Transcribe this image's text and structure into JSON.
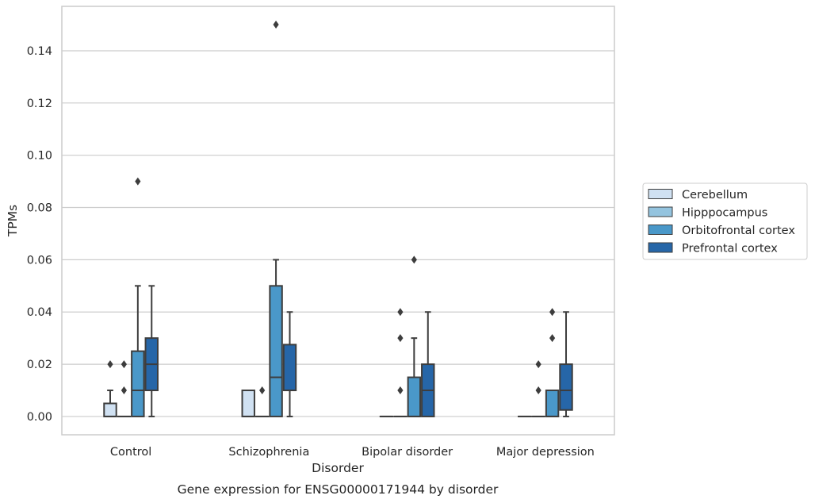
{
  "chart_data": {
    "type": "box",
    "title": "Gene expression for ENSG00000171944 by disorder",
    "xlabel": "Disorder",
    "ylabel": "TPMs",
    "ylim": [
      -0.007,
      0.157
    ],
    "yticks": [
      0.0,
      0.02,
      0.04,
      0.06,
      0.08,
      0.1,
      0.12,
      0.14
    ],
    "ytick_labels": [
      "0.00",
      "0.02",
      "0.04",
      "0.06",
      "0.08",
      "0.10",
      "0.12",
      "0.14"
    ],
    "grid": true,
    "legend_position": "outside-right",
    "categories": [
      "Control",
      "Schizophrenia",
      "Bipolar disorder",
      "Major depression"
    ],
    "series": [
      {
        "name": "Cerebellum",
        "color": "#d0e1f2",
        "boxes": [
          {
            "q1": 0.0,
            "median": 0.0,
            "q3": 0.005,
            "whisker_low": 0.0,
            "whisker_high": 0.01,
            "outliers": [
              0.02
            ]
          },
          {
            "q1": 0.0,
            "median": 0.0,
            "q3": 0.01,
            "whisker_low": 0.0,
            "whisker_high": 0.01,
            "outliers": []
          },
          {
            "q1": 0.0,
            "median": 0.0,
            "q3": 0.0,
            "whisker_low": 0.0,
            "whisker_high": 0.0,
            "outliers": []
          },
          {
            "q1": 0.0,
            "median": 0.0,
            "q3": 0.0,
            "whisker_low": 0.0,
            "whisker_high": 0.0,
            "outliers": []
          }
        ]
      },
      {
        "name": "Hipppocampus",
        "color": "#94c4df",
        "boxes": [
          {
            "q1": 0.0,
            "median": 0.0,
            "q3": 0.0,
            "whisker_low": 0.0,
            "whisker_high": 0.0,
            "outliers": [
              0.01,
              0.02
            ]
          },
          {
            "q1": 0.0,
            "median": 0.0,
            "q3": 0.0,
            "whisker_low": 0.0,
            "whisker_high": 0.0,
            "outliers": [
              0.01
            ]
          },
          {
            "q1": 0.0,
            "median": 0.0,
            "q3": 0.0,
            "whisker_low": 0.0,
            "whisker_high": 0.0,
            "outliers": [
              0.01,
              0.03,
              0.04
            ]
          },
          {
            "q1": 0.0,
            "median": 0.0,
            "q3": 0.0,
            "whisker_low": 0.0,
            "whisker_high": 0.0,
            "outliers": [
              0.01,
              0.02
            ]
          }
        ]
      },
      {
        "name": "Orbitofrontal cortex",
        "color": "#4a98c9",
        "boxes": [
          {
            "q1": 0.0,
            "median": 0.01,
            "q3": 0.025,
            "whisker_low": 0.0,
            "whisker_high": 0.05,
            "outliers": [
              0.09
            ]
          },
          {
            "q1": 0.0,
            "median": 0.015,
            "q3": 0.05,
            "whisker_low": 0.0,
            "whisker_high": 0.06,
            "outliers": [
              0.15
            ]
          },
          {
            "q1": 0.0,
            "median": 0.0,
            "q3": 0.015,
            "whisker_low": 0.0,
            "whisker_high": 0.03,
            "outliers": [
              0.06
            ]
          },
          {
            "q1": 0.0,
            "median": 0.0,
            "q3": 0.01,
            "whisker_low": 0.0,
            "whisker_high": 0.01,
            "outliers": [
              0.03,
              0.04
            ]
          }
        ]
      },
      {
        "name": "Prefrontal cortex",
        "color": "#2666a8",
        "boxes": [
          {
            "q1": 0.01,
            "median": 0.02,
            "q3": 0.03,
            "whisker_low": 0.0,
            "whisker_high": 0.05,
            "outliers": []
          },
          {
            "q1": 0.01,
            "median": 0.01,
            "q3": 0.0275,
            "whisker_low": 0.0,
            "whisker_high": 0.04,
            "outliers": []
          },
          {
            "q1": 0.0,
            "median": 0.01,
            "q3": 0.02,
            "whisker_low": 0.0,
            "whisker_high": 0.04,
            "outliers": []
          },
          {
            "q1": 0.0025,
            "median": 0.01,
            "q3": 0.02,
            "whisker_low": 0.0,
            "whisker_high": 0.04,
            "outliers": []
          }
        ]
      }
    ]
  }
}
